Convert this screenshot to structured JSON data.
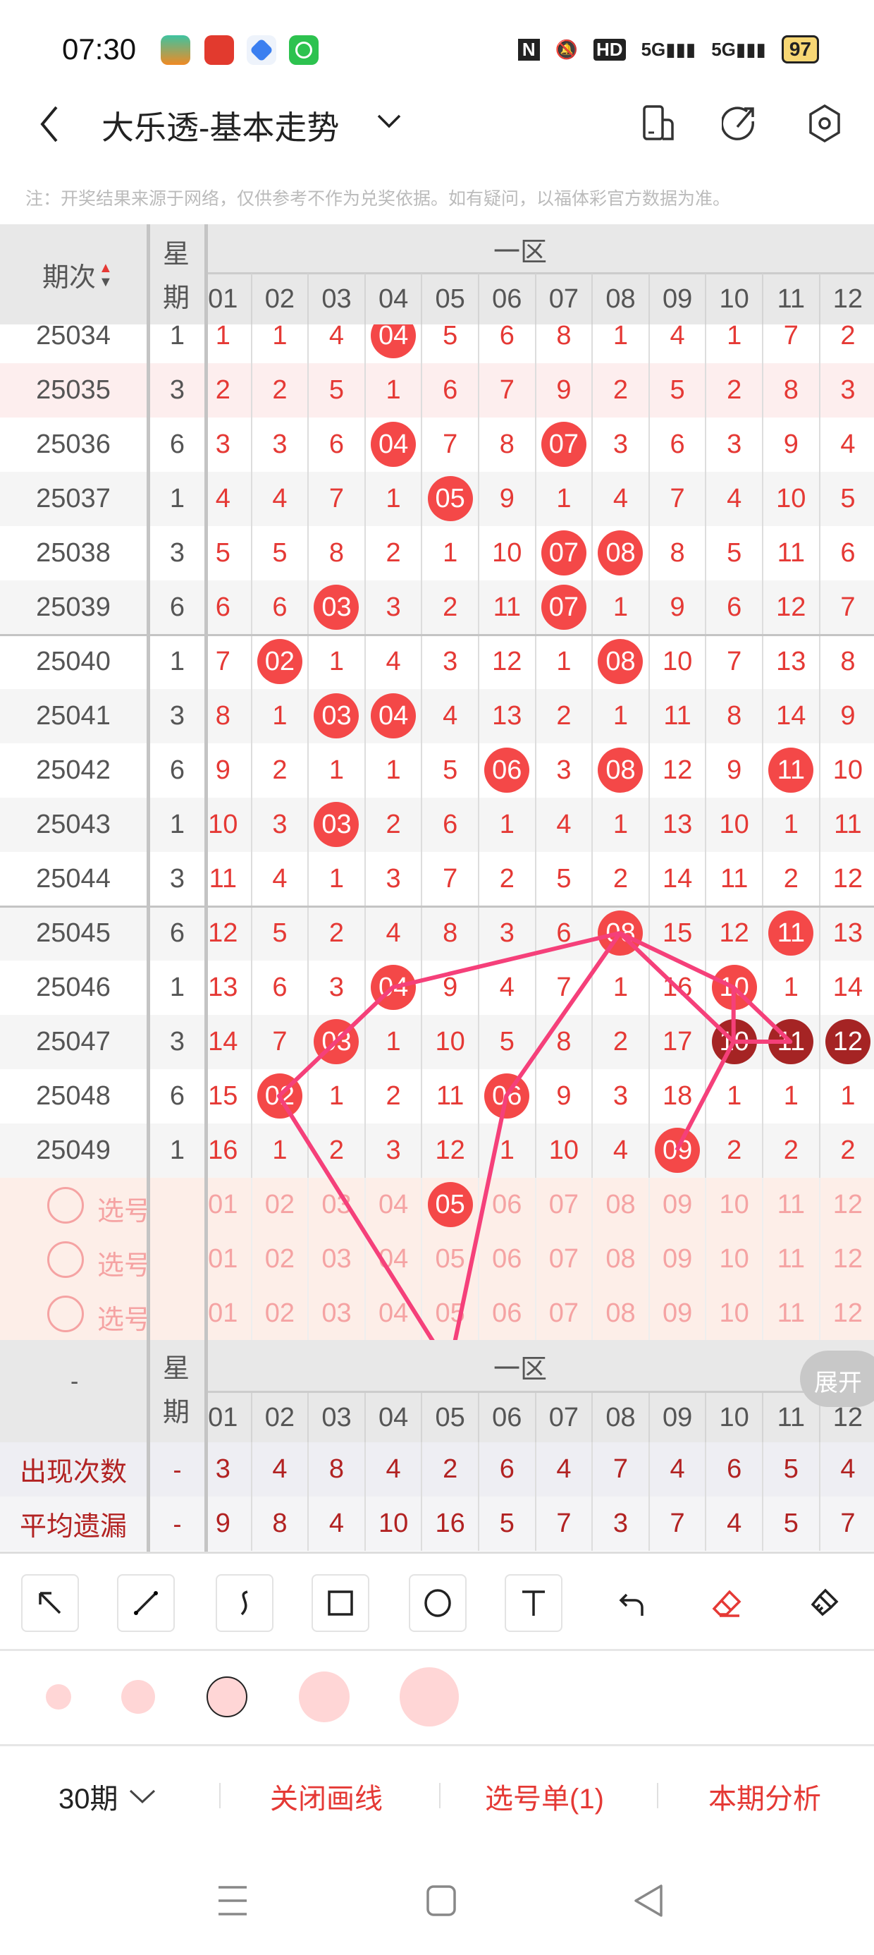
{
  "status_bar": {
    "time": "07:30",
    "battery": "97",
    "network": [
      "5G",
      "5G"
    ],
    "hd": "HD"
  },
  "header": {
    "title": "大乐透-基本走势",
    "icons": [
      "back-icon",
      "chevron-down-icon",
      "phone-icon",
      "share-icon",
      "settings-icon"
    ]
  },
  "note": "注：开奖结果来源于网络，仅供参考不作为兑奖依据。如有疑问，以福体彩官方数据为准。",
  "table": {
    "period_header": "期次",
    "week_header": "星期",
    "zone_header": "一区",
    "columns": [
      "01",
      "02",
      "03",
      "04",
      "05",
      "06",
      "07",
      "08",
      "09",
      "10",
      "11",
      "12"
    ],
    "rows": [
      {
        "period": "25034",
        "week": "1",
        "cells": [
          "1",
          "1",
          "4",
          "04",
          "5",
          "6",
          "8",
          "1",
          "4",
          "1",
          "7",
          "2"
        ],
        "hits": [
          4
        ],
        "repeat": []
      },
      {
        "period": "25035",
        "week": "3",
        "cells": [
          "2",
          "2",
          "5",
          "1",
          "6",
          "7",
          "9",
          "2",
          "5",
          "2",
          "8",
          "3"
        ],
        "hits": [],
        "repeat": []
      },
      {
        "period": "25036",
        "week": "6",
        "cells": [
          "3",
          "3",
          "6",
          "04",
          "7",
          "8",
          "07",
          "3",
          "6",
          "3",
          "9",
          "4"
        ],
        "hits": [
          4,
          7
        ],
        "repeat": []
      },
      {
        "period": "25037",
        "week": "1",
        "cells": [
          "4",
          "4",
          "7",
          "1",
          "05",
          "9",
          "1",
          "4",
          "7",
          "4",
          "10",
          "5"
        ],
        "hits": [
          5
        ],
        "repeat": []
      },
      {
        "period": "25038",
        "week": "3",
        "cells": [
          "5",
          "5",
          "8",
          "2",
          "1",
          "10",
          "07",
          "08",
          "8",
          "5",
          "11",
          "6"
        ],
        "hits": [
          7,
          8
        ],
        "repeat": []
      },
      {
        "period": "25039",
        "week": "6",
        "cells": [
          "6",
          "6",
          "03",
          "3",
          "2",
          "11",
          "07",
          "1",
          "9",
          "6",
          "12",
          "7"
        ],
        "hits": [
          3,
          7
        ],
        "repeat": []
      },
      {
        "period": "25040",
        "week": "1",
        "cells": [
          "7",
          "02",
          "1",
          "4",
          "3",
          "12",
          "1",
          "08",
          "10",
          "7",
          "13",
          "8"
        ],
        "hits": [
          2,
          8
        ],
        "repeat": []
      },
      {
        "period": "25041",
        "week": "3",
        "cells": [
          "8",
          "1",
          "03",
          "04",
          "4",
          "13",
          "2",
          "1",
          "11",
          "8",
          "14",
          "9"
        ],
        "hits": [
          3,
          4
        ],
        "repeat": []
      },
      {
        "period": "25042",
        "week": "6",
        "cells": [
          "9",
          "2",
          "1",
          "1",
          "5",
          "06",
          "3",
          "08",
          "12",
          "9",
          "11",
          "10"
        ],
        "hits": [
          6,
          8,
          11
        ],
        "repeat": []
      },
      {
        "period": "25043",
        "week": "1",
        "cells": [
          "10",
          "3",
          "03",
          "2",
          "6",
          "1",
          "4",
          "1",
          "13",
          "10",
          "1",
          "11"
        ],
        "hits": [
          3
        ],
        "repeat": []
      },
      {
        "period": "25044",
        "week": "3",
        "cells": [
          "11",
          "4",
          "1",
          "3",
          "7",
          "2",
          "5",
          "2",
          "14",
          "11",
          "2",
          "12"
        ],
        "hits": [],
        "repeat": []
      },
      {
        "period": "25045",
        "week": "6",
        "cells": [
          "12",
          "5",
          "2",
          "4",
          "8",
          "3",
          "6",
          "08",
          "15",
          "12",
          "11",
          "13"
        ],
        "hits": [
          8,
          11
        ],
        "repeat": []
      },
      {
        "period": "25046",
        "week": "1",
        "cells": [
          "13",
          "6",
          "3",
          "04",
          "9",
          "4",
          "7",
          "1",
          "16",
          "10",
          "1",
          "14"
        ],
        "hits": [
          4,
          10
        ],
        "repeat": []
      },
      {
        "period": "25047",
        "week": "3",
        "cells": [
          "14",
          "7",
          "03",
          "1",
          "10",
          "5",
          "8",
          "2",
          "17",
          "10",
          "11",
          "12"
        ],
        "hits": [
          3,
          10,
          11,
          12
        ],
        "repeat": [
          10,
          11,
          12
        ]
      },
      {
        "period": "25048",
        "week": "6",
        "cells": [
          "15",
          "02",
          "1",
          "2",
          "11",
          "06",
          "9",
          "3",
          "18",
          "1",
          "1",
          "1"
        ],
        "hits": [
          2,
          6
        ],
        "repeat": []
      },
      {
        "period": "25049",
        "week": "1",
        "cells": [
          "16",
          "1",
          "2",
          "3",
          "12",
          "1",
          "10",
          "4",
          "09",
          "2",
          "2",
          "2"
        ],
        "hits": [
          9
        ],
        "repeat": []
      }
    ],
    "select_rows": [
      {
        "label": "选号",
        "selected": [
          5
        ]
      },
      {
        "label": "选号",
        "selected": []
      },
      {
        "label": "选号",
        "selected": []
      }
    ]
  },
  "stats": {
    "dash": "-",
    "expand": "展开",
    "rows": [
      {
        "label": "出现次数",
        "week": "-",
        "values": [
          "3",
          "4",
          "8",
          "4",
          "2",
          "6",
          "4",
          "7",
          "4",
          "6",
          "5",
          "4"
        ]
      },
      {
        "label": "平均遗漏",
        "week": "-",
        "values": [
          "9",
          "8",
          "4",
          "10",
          "16",
          "5",
          "7",
          "3",
          "7",
          "4",
          "5",
          "7"
        ]
      }
    ]
  },
  "tools": [
    "arrow",
    "line",
    "curve",
    "rectangle",
    "circle",
    "text",
    "undo",
    "eraser",
    "clear"
  ],
  "active_tool": "eraser",
  "brush_sizes": 5,
  "selected_brush": 3,
  "colors": {
    "accent": "#e53935",
    "ball": "#f44848",
    "ball_repeat": "#a52424",
    "drawing": "#f5407a",
    "brush": "#ffd6d6"
  },
  "bottom_bar": {
    "periods": "30期",
    "close_drawing": "关闭画线",
    "pick_list": "选号单(1)",
    "analysis": "本期分析"
  }
}
